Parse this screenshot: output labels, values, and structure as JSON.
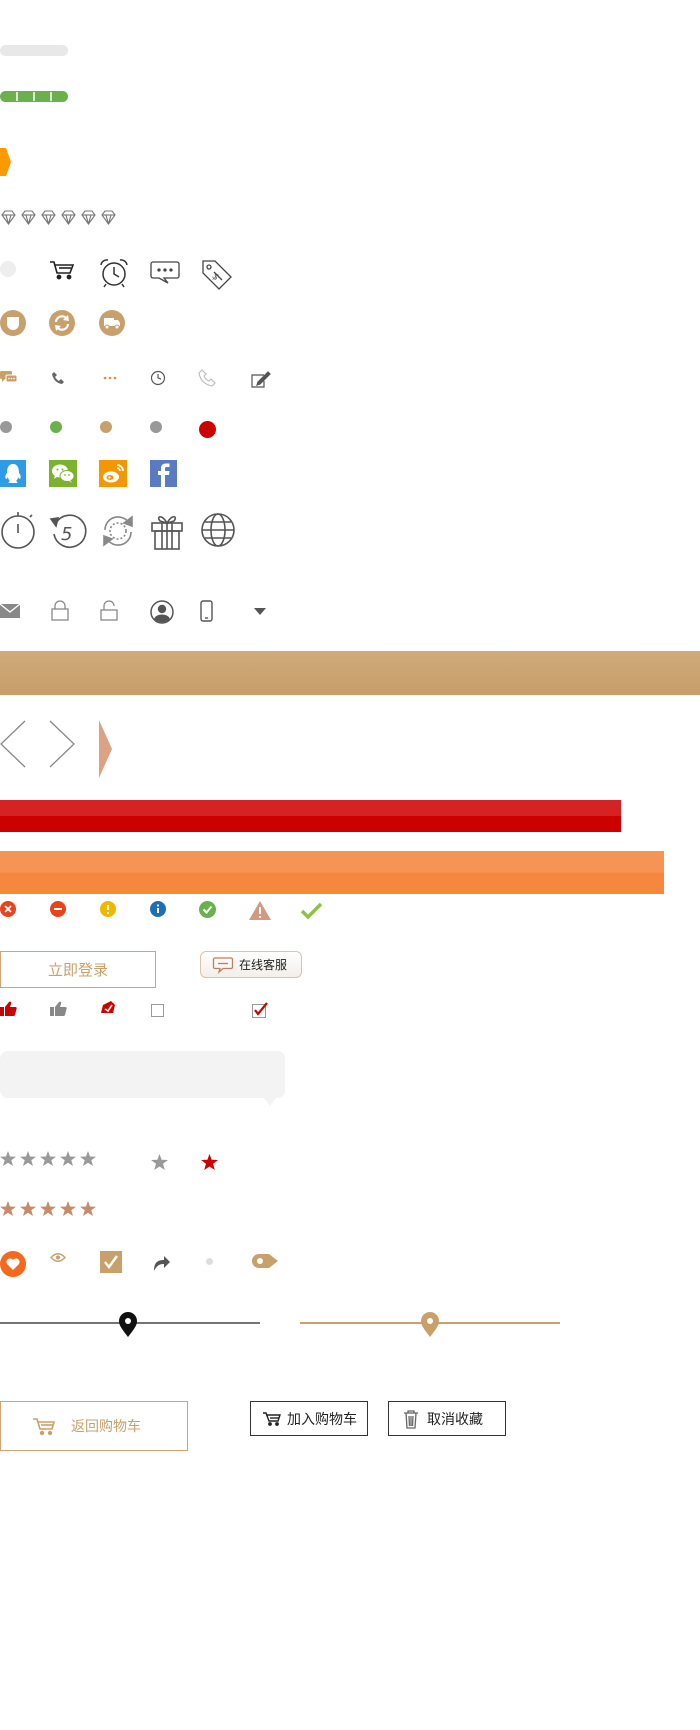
{
  "colors": {
    "gold": "#c8a06c",
    "green": "#6ab04c",
    "orange": "#ff9900",
    "red": "#cc0000",
    "gray": "#888888",
    "light_gray": "#eeeeee",
    "salmon": "#dca283",
    "banner_orange": "#f5894a",
    "qq_blue": "#2e9be6",
    "wechat_green": "#7bb32e",
    "weibo_orange": "#f39800",
    "facebook_blue": "#5b7bc0"
  },
  "progress": {
    "empty_fraction": 0.0,
    "filled_fraction": 1.0,
    "segments": 4
  },
  "diamond_rating": {
    "count": 6
  },
  "star_rating_gray": {
    "count": 5
  },
  "star_rating_gold": {
    "count": 5
  },
  "buttons": {
    "login": "立即登录",
    "online_service": "在线客服",
    "back_to_cart": "返回购物车",
    "add_to_cart": "加入购物车",
    "cancel_favorite": "取消收藏"
  }
}
